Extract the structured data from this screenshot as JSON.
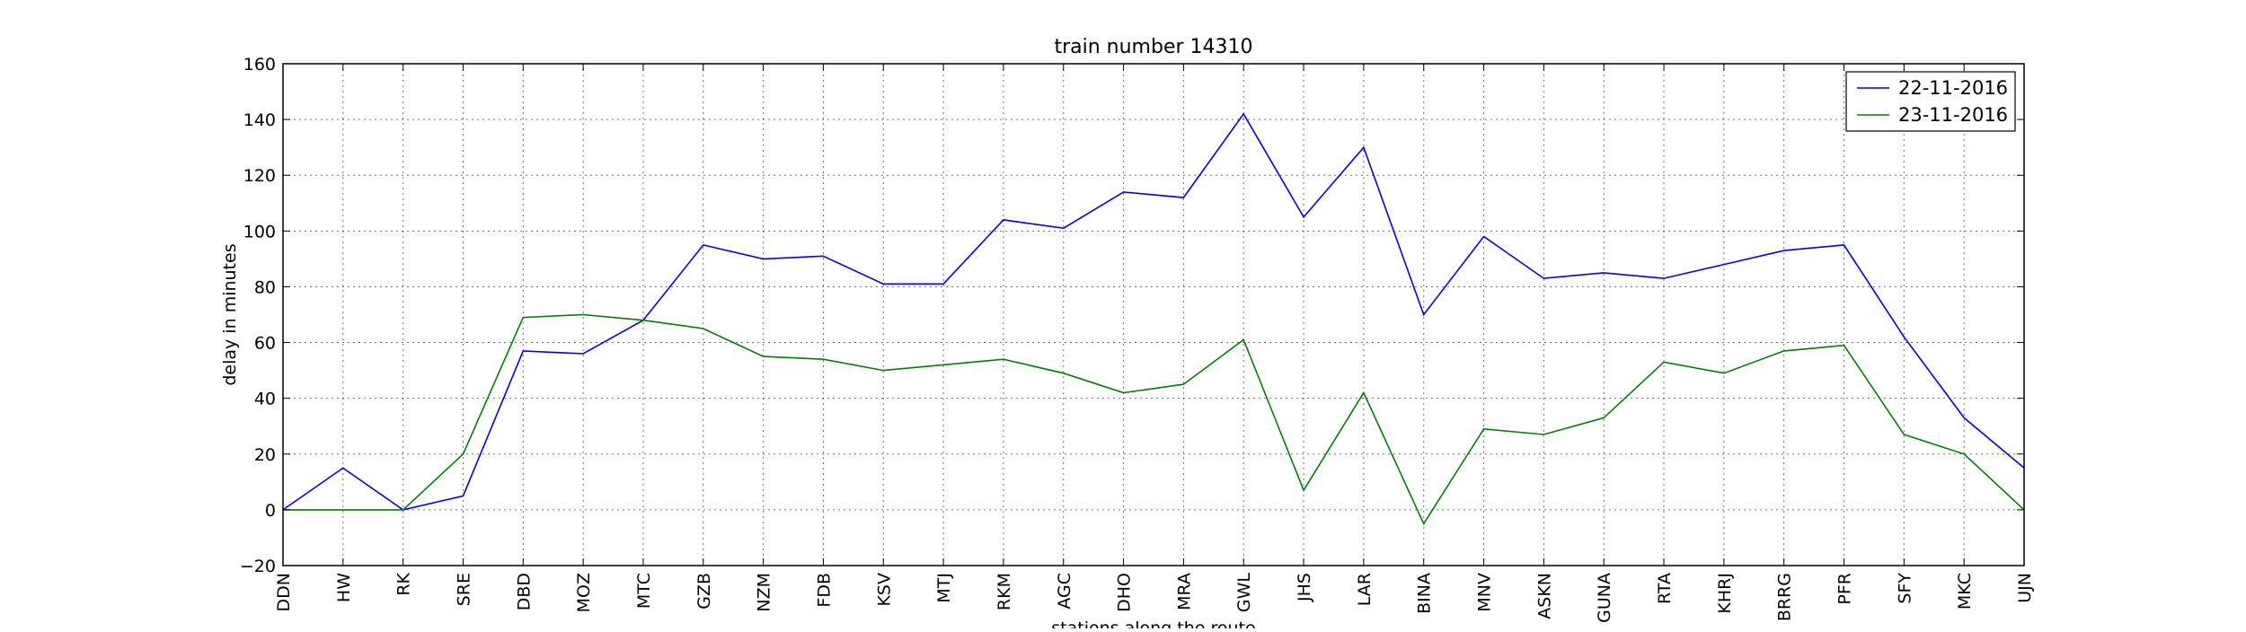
{
  "chart_data": {
    "type": "line",
    "title": "train number 14310",
    "xlabel": "stations along the route",
    "ylabel": "delay in minutes",
    "ylim": [
      -20,
      160
    ],
    "yticks": [
      -20,
      0,
      20,
      40,
      60,
      80,
      100,
      120,
      140,
      160
    ],
    "grid": true,
    "legend_position": "top-right",
    "categories": [
      "DDN",
      "HW",
      "RK",
      "SRE",
      "DBD",
      "MOZ",
      "MTC",
      "GZB",
      "NZM",
      "FDB",
      "KSV",
      "MTJ",
      "RKM",
      "AGC",
      "DHO",
      "MRA",
      "GWL",
      "JHS",
      "LAR",
      "BINA",
      "MNV",
      "ASKN",
      "GUNA",
      "RTA",
      "KHRJ",
      "BRRG",
      "PFR",
      "SFY",
      "MKC",
      "UJN"
    ],
    "series": [
      {
        "name": "22-11-2016",
        "color": "#0000ff",
        "values": [
          0,
          15,
          0,
          5,
          57,
          56,
          68,
          95,
          90,
          91,
          81,
          81,
          104,
          101,
          114,
          112,
          142,
          105,
          130,
          70,
          98,
          83,
          85,
          83,
          88,
          93,
          95,
          62,
          33,
          15
        ]
      },
      {
        "name": "23-11-2016",
        "color": "#008000",
        "values": [
          0,
          0,
          0,
          20,
          69,
          70,
          68,
          65,
          55,
          54,
          50,
          52,
          54,
          49,
          42,
          45,
          61,
          7,
          42,
          -5,
          29,
          27,
          33,
          53,
          49,
          57,
          59,
          27,
          20,
          0
        ]
      }
    ]
  }
}
